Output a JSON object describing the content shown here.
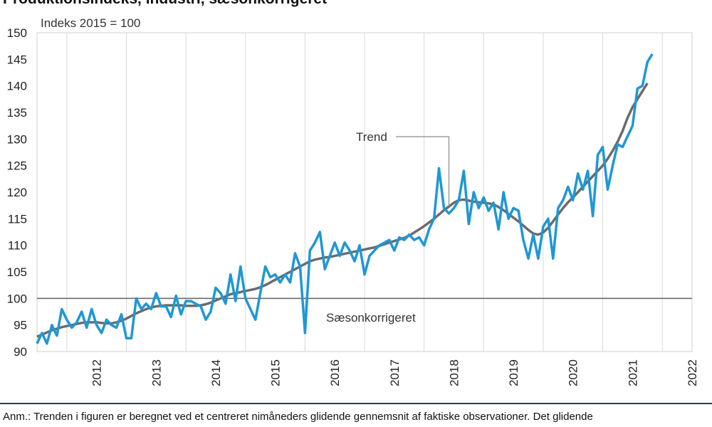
{
  "title": "Produktionsindeks, industri, sæsonkorrigeret",
  "note": {
    "line1": "Anm.: Trenden i figuren er beregnet ved et centreret nimåneders glidende gennemsnit af faktiske observationer. Det glidende",
    "line2": ""
  },
  "chart_data": {
    "type": "line",
    "title": "Produktionsindeks, industri, sæsonkorrigeret",
    "ylabel": "Indeks 2015 = 100",
    "xlabel": "",
    "ylim": [
      90,
      150
    ],
    "yticks": [
      90,
      95,
      100,
      105,
      110,
      115,
      120,
      125,
      130,
      135,
      140,
      145,
      150
    ],
    "xlim": [
      2011.5,
      2022.5
    ],
    "xtick_labels": [
      "2012",
      "2013",
      "2014",
      "2015",
      "2016",
      "2017",
      "2018",
      "2019",
      "2020",
      "2021",
      "2022"
    ],
    "x_start": "2011-07",
    "frequency": "monthly",
    "reference_line": 100,
    "grid": "vertical",
    "legend": "inline annotations",
    "annotations": [
      {
        "text": "Trend",
        "series": "Trend"
      },
      {
        "text": "Sæsonkorrigeret",
        "series": "Sæsonkorrigeret"
      }
    ],
    "series": [
      {
        "name": "Sæsonkorrigeret",
        "color": "#1f97d4",
        "values": [
          91.5,
          93.5,
          91.5,
          95,
          93,
          98,
          96,
          94.5,
          95.5,
          97.5,
          94.5,
          98,
          95,
          93.5,
          96,
          95,
          94.5,
          97,
          92.5,
          92.5,
          100,
          98,
          99,
          98,
          101,
          98.5,
          98.5,
          96.5,
          100.5,
          97,
          99.5,
          99.5,
          99,
          98.5,
          96,
          97.5,
          102,
          101,
          99,
          104.5,
          99.5,
          106,
          100,
          98,
          96,
          101,
          106,
          104,
          104.5,
          103,
          104.5,
          103,
          108.5,
          106,
          93.5,
          109,
          110.5,
          112.5,
          105.5,
          108,
          110.5,
          108,
          110.5,
          109,
          107,
          110,
          104.5,
          108,
          109,
          110,
          110.5,
          111,
          109,
          111.5,
          111,
          112,
          111,
          111.5,
          110,
          113,
          115,
          124.5,
          117,
          116,
          117,
          118.5,
          124,
          114,
          120,
          117,
          119,
          116.5,
          118,
          113,
          120,
          115,
          117,
          116.5,
          111,
          107.5,
          112,
          107.5,
          113.5,
          115,
          107.5,
          117,
          118.5,
          121,
          118.5,
          123.5,
          120.5,
          124,
          115.5,
          127,
          128.5,
          120.5,
          125,
          129,
          128.5,
          130.5,
          132.5,
          139.5,
          140,
          144.5,
          146
        ]
      },
      {
        "name": "Trend",
        "color": "#6b6b6b",
        "values": [
          92.8,
          93.2,
          93.6,
          94,
          94.3,
          94.6,
          94.8,
          95,
          95.2,
          95.4,
          95.5,
          95.5,
          95.5,
          95.4,
          95.3,
          95.3,
          95.5,
          95.8,
          96.2,
          96.7,
          97.2,
          97.6,
          98,
          98.3,
          98.5,
          98.6,
          98.7,
          98.7,
          98.7,
          98.7,
          98.6,
          98.6,
          98.6,
          98.7,
          98.9,
          99.2,
          99.6,
          100,
          100.4,
          100.8,
          101,
          101.2,
          101.4,
          101.6,
          101.8,
          102.1,
          102.5,
          103,
          103.5,
          104,
          104.5,
          105,
          105.5,
          106,
          106.5,
          107,
          107.3,
          107.5,
          107.7,
          107.8,
          108,
          108.2,
          108.4,
          108.6,
          108.8,
          109,
          109.2,
          109.4,
          109.6,
          109.9,
          110.2,
          110.5,
          110.8,
          111.1,
          111.4,
          111.8,
          112.4,
          113,
          113.6,
          114.3,
          115,
          115.8,
          116.6,
          117.3,
          118,
          118.5,
          118.6,
          118.4,
          118.2,
          118.1,
          118,
          117.9,
          117.7,
          117.2,
          116.6,
          115.9,
          115.2,
          114.5,
          113.7,
          112.9,
          112.2,
          112,
          112.4,
          113.3,
          114.5,
          115.8,
          117,
          118.1,
          119,
          120,
          121,
          122,
          123,
          124,
          125,
          126.3,
          127.8,
          129.5,
          131.5,
          134,
          136,
          137.5,
          139,
          140.5
        ]
      }
    ]
  }
}
